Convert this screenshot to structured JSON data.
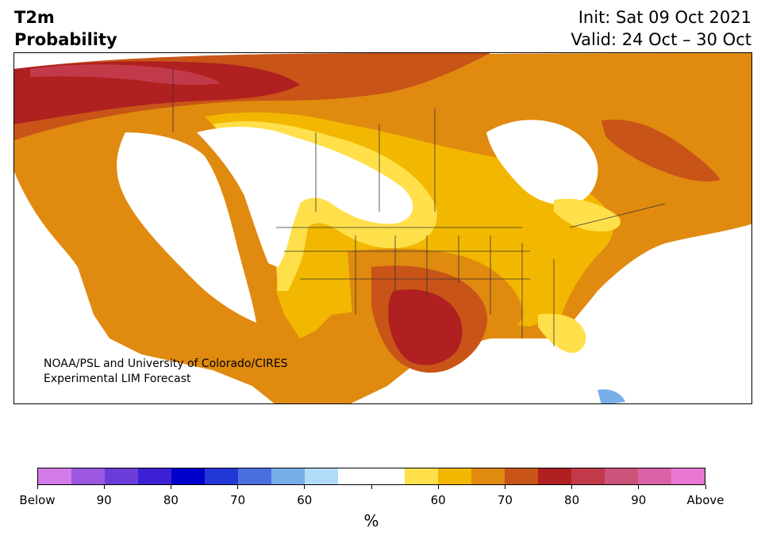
{
  "title": {
    "line1": "T2m",
    "line2": "Probability"
  },
  "dates": {
    "init": "Init: Sat 09 Oct 2021",
    "valid": "Valid: 24 Oct – 30 Oct"
  },
  "credit": {
    "line1": "NOAA/PSL and University of Colorado/CIRES",
    "line2": "Experimental LIM Forecast"
  },
  "colorbar": {
    "colors": [
      "#d47ae8",
      "#9b57e0",
      "#6a3dd8",
      "#3c20d4",
      "#0000cc",
      "#2238d6",
      "#4a70e0",
      "#78aee8",
      "#b0dcf8",
      "#ffffff",
      "#ffffff",
      "#ffe04a",
      "#f2b700",
      "#e08a10",
      "#c85418",
      "#b02020",
      "#c23a4a",
      "#cc527a",
      "#dc62a8",
      "#e878d4"
    ],
    "tick_labels": [
      "Below",
      "90",
      "80",
      "70",
      "60",
      "",
      "60",
      "70",
      "80",
      "90",
      "Above"
    ],
    "unit": "%"
  },
  "legend_colors": {
    "white": "#ffffff",
    "yellow_light": "#ffe04a",
    "yellow": "#f2b700",
    "orange": "#e08a10",
    "orange_dark": "#c85418",
    "red": "#b02020",
    "crimson": "#c23a4a",
    "blue_light": "#78aee8"
  }
}
